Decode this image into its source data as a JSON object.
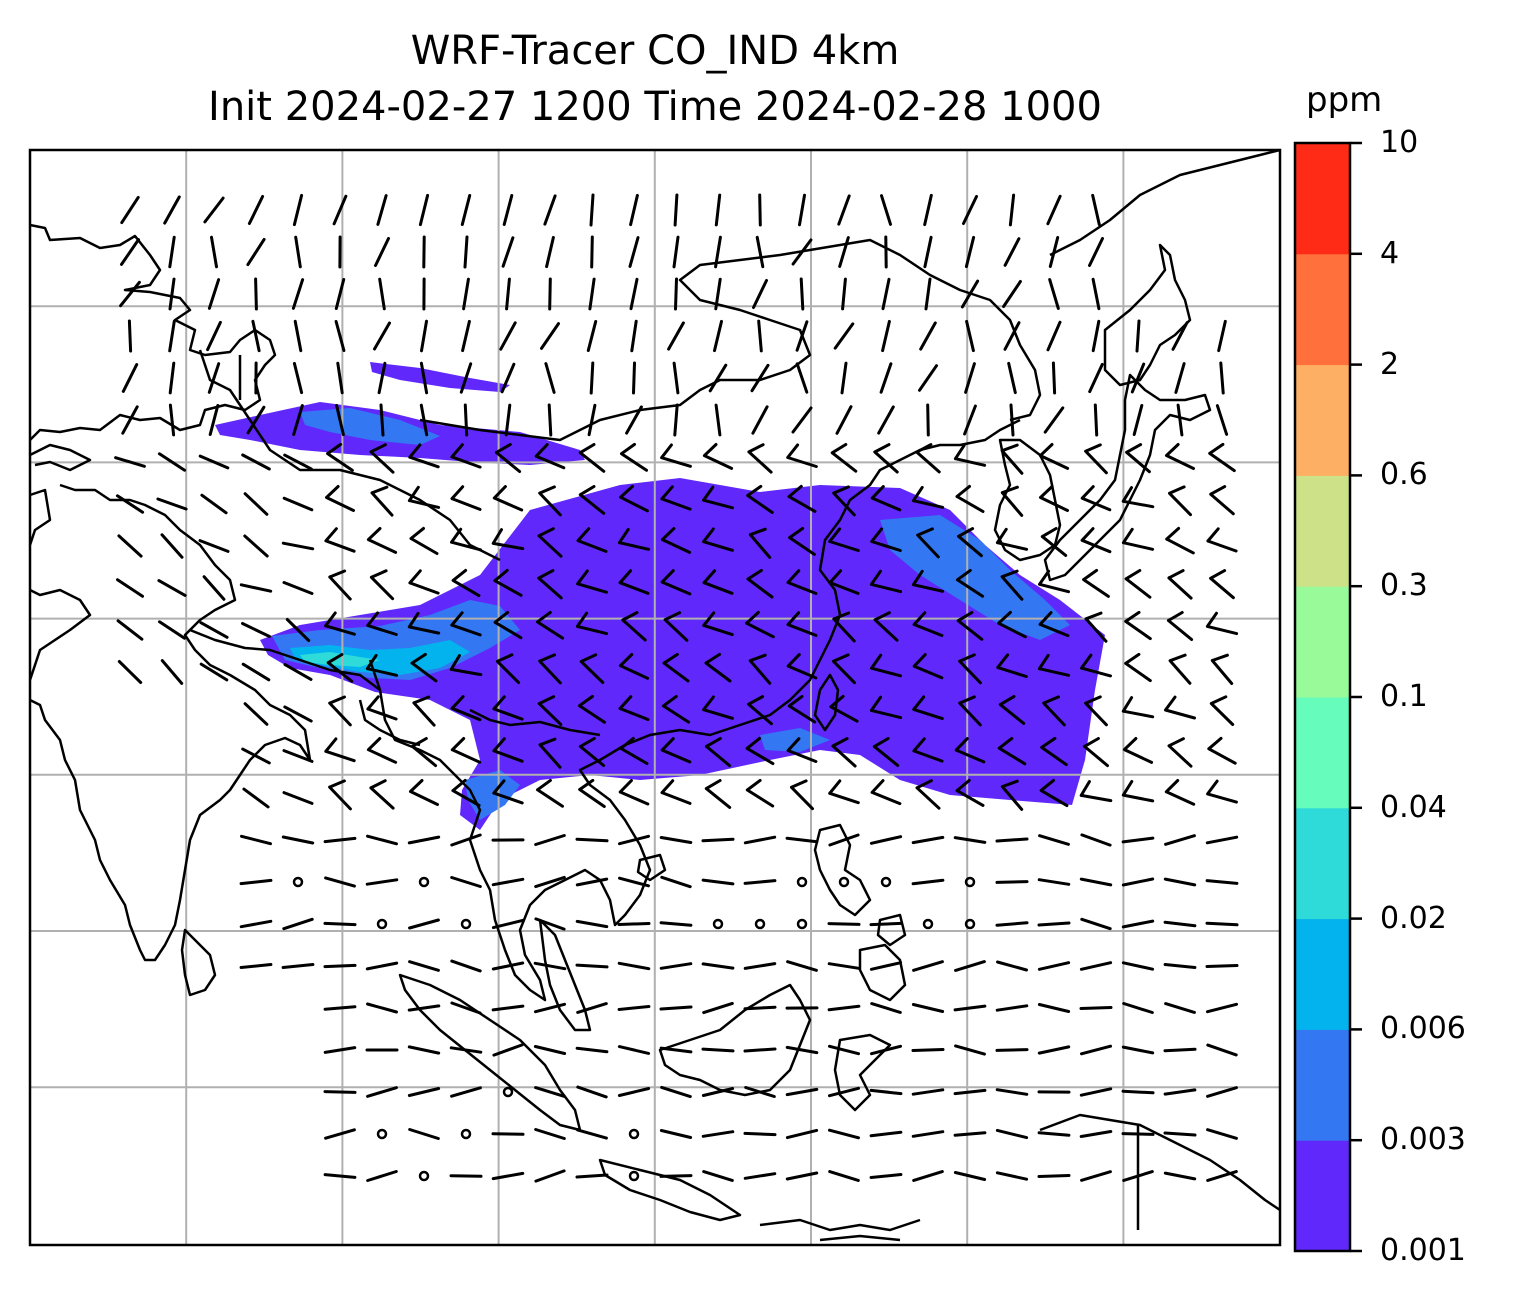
{
  "title_line1": "WRF-Tracer CO_IND 4km",
  "title_line2": "Init 2024-02-27 1200 Time 2024-02-28 1000",
  "colorbar": {
    "unit": "ppm",
    "levels": [
      "0.001",
      "0.003",
      "0.006",
      "0.02",
      "0.04",
      "0.1",
      "0.3",
      "0.6",
      "2",
      "4",
      "10"
    ],
    "colors": [
      "#6128fb",
      "#3377f3",
      "#03b3ee",
      "#2edbd9",
      "#66fcbc",
      "#98fa99",
      "#cde288",
      "#fdb063",
      "#ff703c",
      "#ff2b16"
    ]
  },
  "map": {
    "background": "#ffffff",
    "coastline_color": "#000000",
    "gridline_color": "#b0b0b0",
    "barb_color": "#000000",
    "tracer_colors": [
      "#6128fb",
      "#3377f3",
      "#03b3ee",
      "#2edbd9"
    ],
    "lon_lines": 7,
    "lat_lines": 6
  }
}
